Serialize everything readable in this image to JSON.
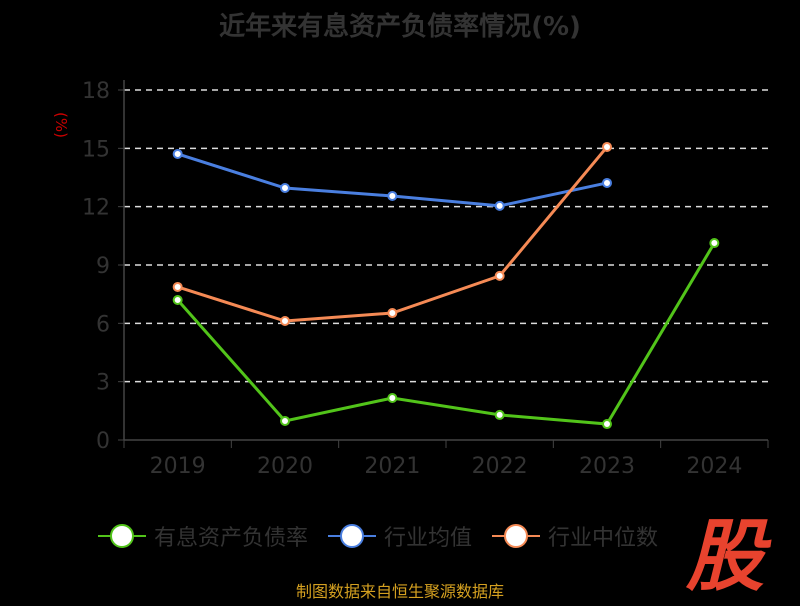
{
  "chart_data": {
    "type": "line",
    "title": "近年来有息资产负债率情况(%)",
    "ylabel": "(%)",
    "categories": [
      "2019",
      "2020",
      "2021",
      "2022",
      "2023",
      "2024"
    ],
    "ylim": [
      0,
      18
    ],
    "yticks": [
      0,
      3,
      6,
      9,
      12,
      15,
      18
    ],
    "grid": true,
    "legend_position": "bottom",
    "series": [
      {
        "name": "有息资产负债率",
        "color": "#52c41a",
        "values": [
          7.2,
          0.98,
          2.16,
          1.29,
          0.82,
          10.13
        ]
      },
      {
        "name": "行业均值",
        "color": "#4a7fe0",
        "values": [
          14.71,
          12.96,
          12.55,
          12.04,
          13.22,
          null
        ]
      },
      {
        "name": "行业中位数",
        "color": "#f58a55",
        "values": [
          7.87,
          6.12,
          6.53,
          8.44,
          15.07,
          null
        ]
      }
    ]
  },
  "source": "制图数据来自恒生聚源数据库",
  "watermark": "股"
}
